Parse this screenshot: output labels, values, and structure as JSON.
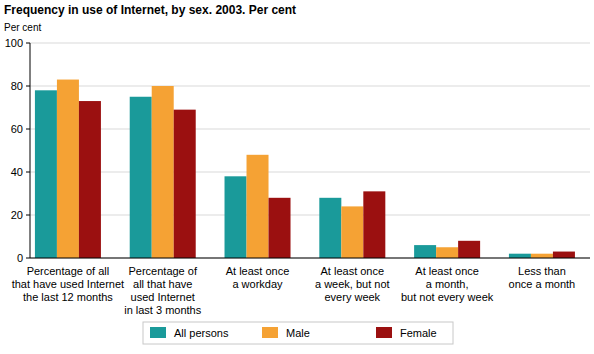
{
  "chart_data": {
    "type": "bar",
    "title": "Frequency in use of Internet, by sex. 2003. Per cent",
    "y_label": "Per cent",
    "categories": [
      "Percentage of all\nthat have used Internet\nthe last 12 months",
      "Percentage of\nall that have\nused Internet\nin last 3 months",
      "At least once\na workday",
      "At least once\na week, but not\nevery week",
      "At least once\na month,\nbut not every week",
      "Less than\nonce a month"
    ],
    "series": [
      {
        "name": "All persons",
        "color": "#1a9a9a",
        "values": [
          78,
          75,
          38,
          28,
          6,
          2
        ]
      },
      {
        "name": "Male",
        "color": "#f5a234",
        "values": [
          83,
          80,
          48,
          24,
          5,
          2
        ]
      },
      {
        "name": "Female",
        "color": "#9b1010",
        "values": [
          73,
          69,
          28,
          31,
          8,
          3
        ]
      }
    ],
    "ylim": [
      0,
      100
    ],
    "yticks": [
      0,
      20,
      40,
      60,
      80,
      100
    ],
    "grid": true,
    "legend": "bottom"
  }
}
